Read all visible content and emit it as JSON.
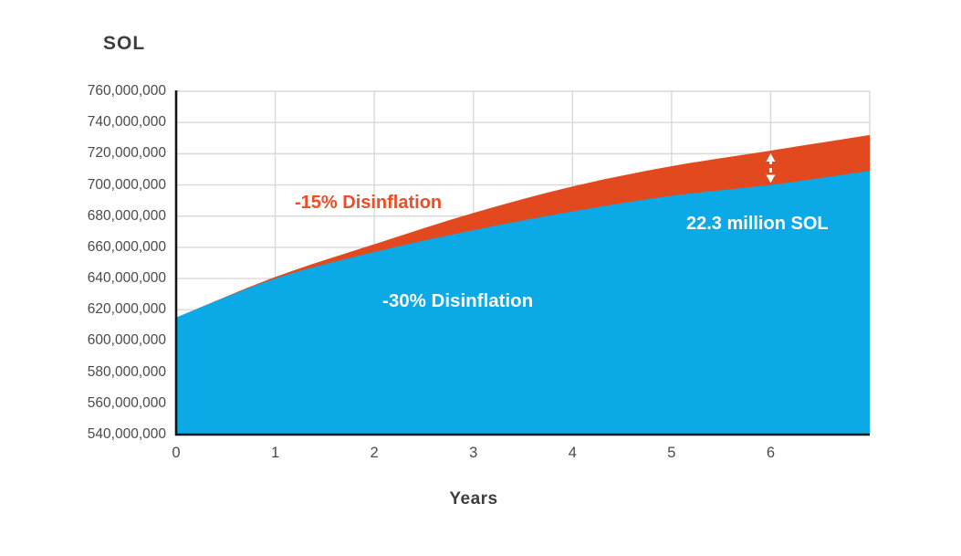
{
  "chart_data": {
    "type": "area",
    "title_y_axis": "SOL",
    "xlabel": "Years",
    "x": [
      0,
      1,
      2,
      3,
      4,
      5,
      6,
      7
    ],
    "x_tick_labels": [
      "0",
      "1",
      "2",
      "3",
      "4",
      "5",
      "6"
    ],
    "y_ticks": [
      540000000,
      560000000,
      580000000,
      600000000,
      620000000,
      640000000,
      660000000,
      680000000,
      700000000,
      720000000,
      740000000,
      760000000
    ],
    "ylim": [
      540000000,
      760000000
    ],
    "xlim": [
      0,
      7
    ],
    "grid": true,
    "series": [
      {
        "name": "-15% Disinflation",
        "color": "#E2491F",
        "label_color": "#ED4E26",
        "values": [
          615000000,
          641000000,
          662000000,
          682000000,
          699000000,
          712000000,
          722000000,
          732000000
        ]
      },
      {
        "name": "-30% Disinflation",
        "color": "#0BA9E6",
        "label_color": "#FFFFFF",
        "values": [
          615000000,
          640000000,
          657000000,
          671000000,
          683000000,
          693000000,
          700000000,
          709000000
        ]
      }
    ],
    "annotation": {
      "text": "22.3 million SOL",
      "x_year": 6,
      "gap_sol": 22300000,
      "arrow_style": "white-dashed-double-headed"
    }
  },
  "colors": {
    "axis_line": "#141414",
    "grid_line": "#d9d9d9",
    "tick_text": "#4a4a4a",
    "title_text": "#3e3e3e",
    "background": "#ffffff",
    "arrow": "#ffffff"
  }
}
